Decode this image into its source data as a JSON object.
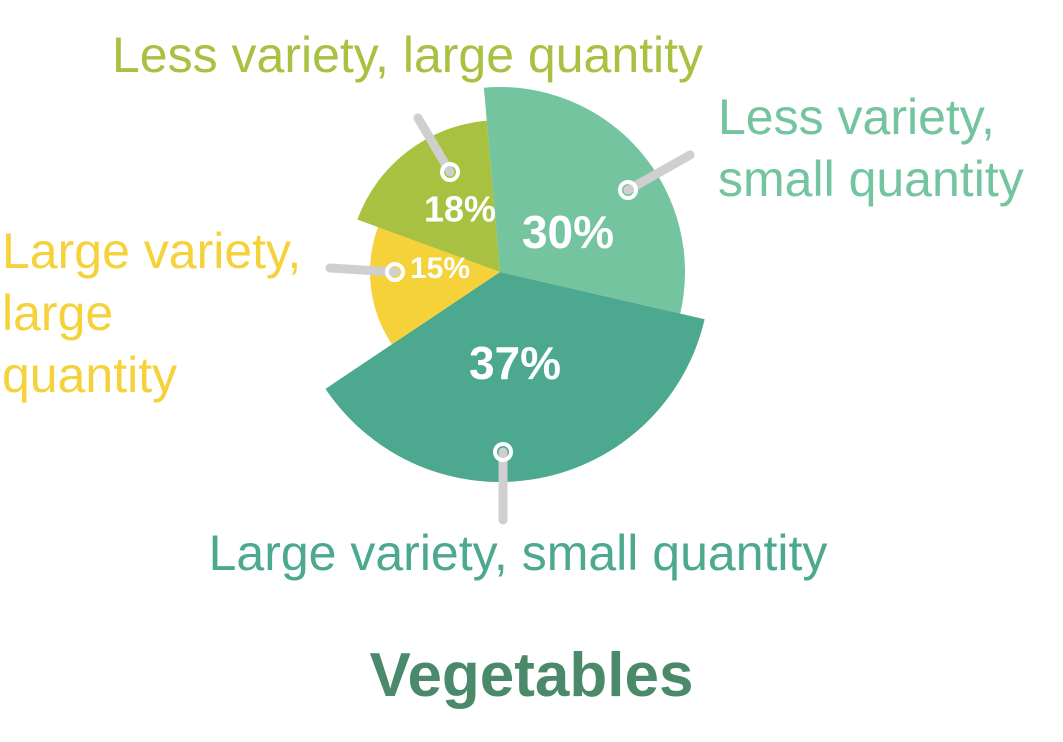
{
  "chart_data": {
    "type": "pie",
    "title": "Vegetables",
    "categories": [
      "Less variety, small quantity",
      "Large variety, small quantity",
      "Large variety, large quantity",
      "Less variety, large quantity"
    ],
    "values": [
      30,
      37,
      15,
      18
    ],
    "value_labels": [
      "30%",
      "37%",
      "15%",
      "18%"
    ],
    "colors": [
      "#74c4a0",
      "#4ca88e",
      "#f5d13a",
      "#a8c140"
    ]
  }
}
